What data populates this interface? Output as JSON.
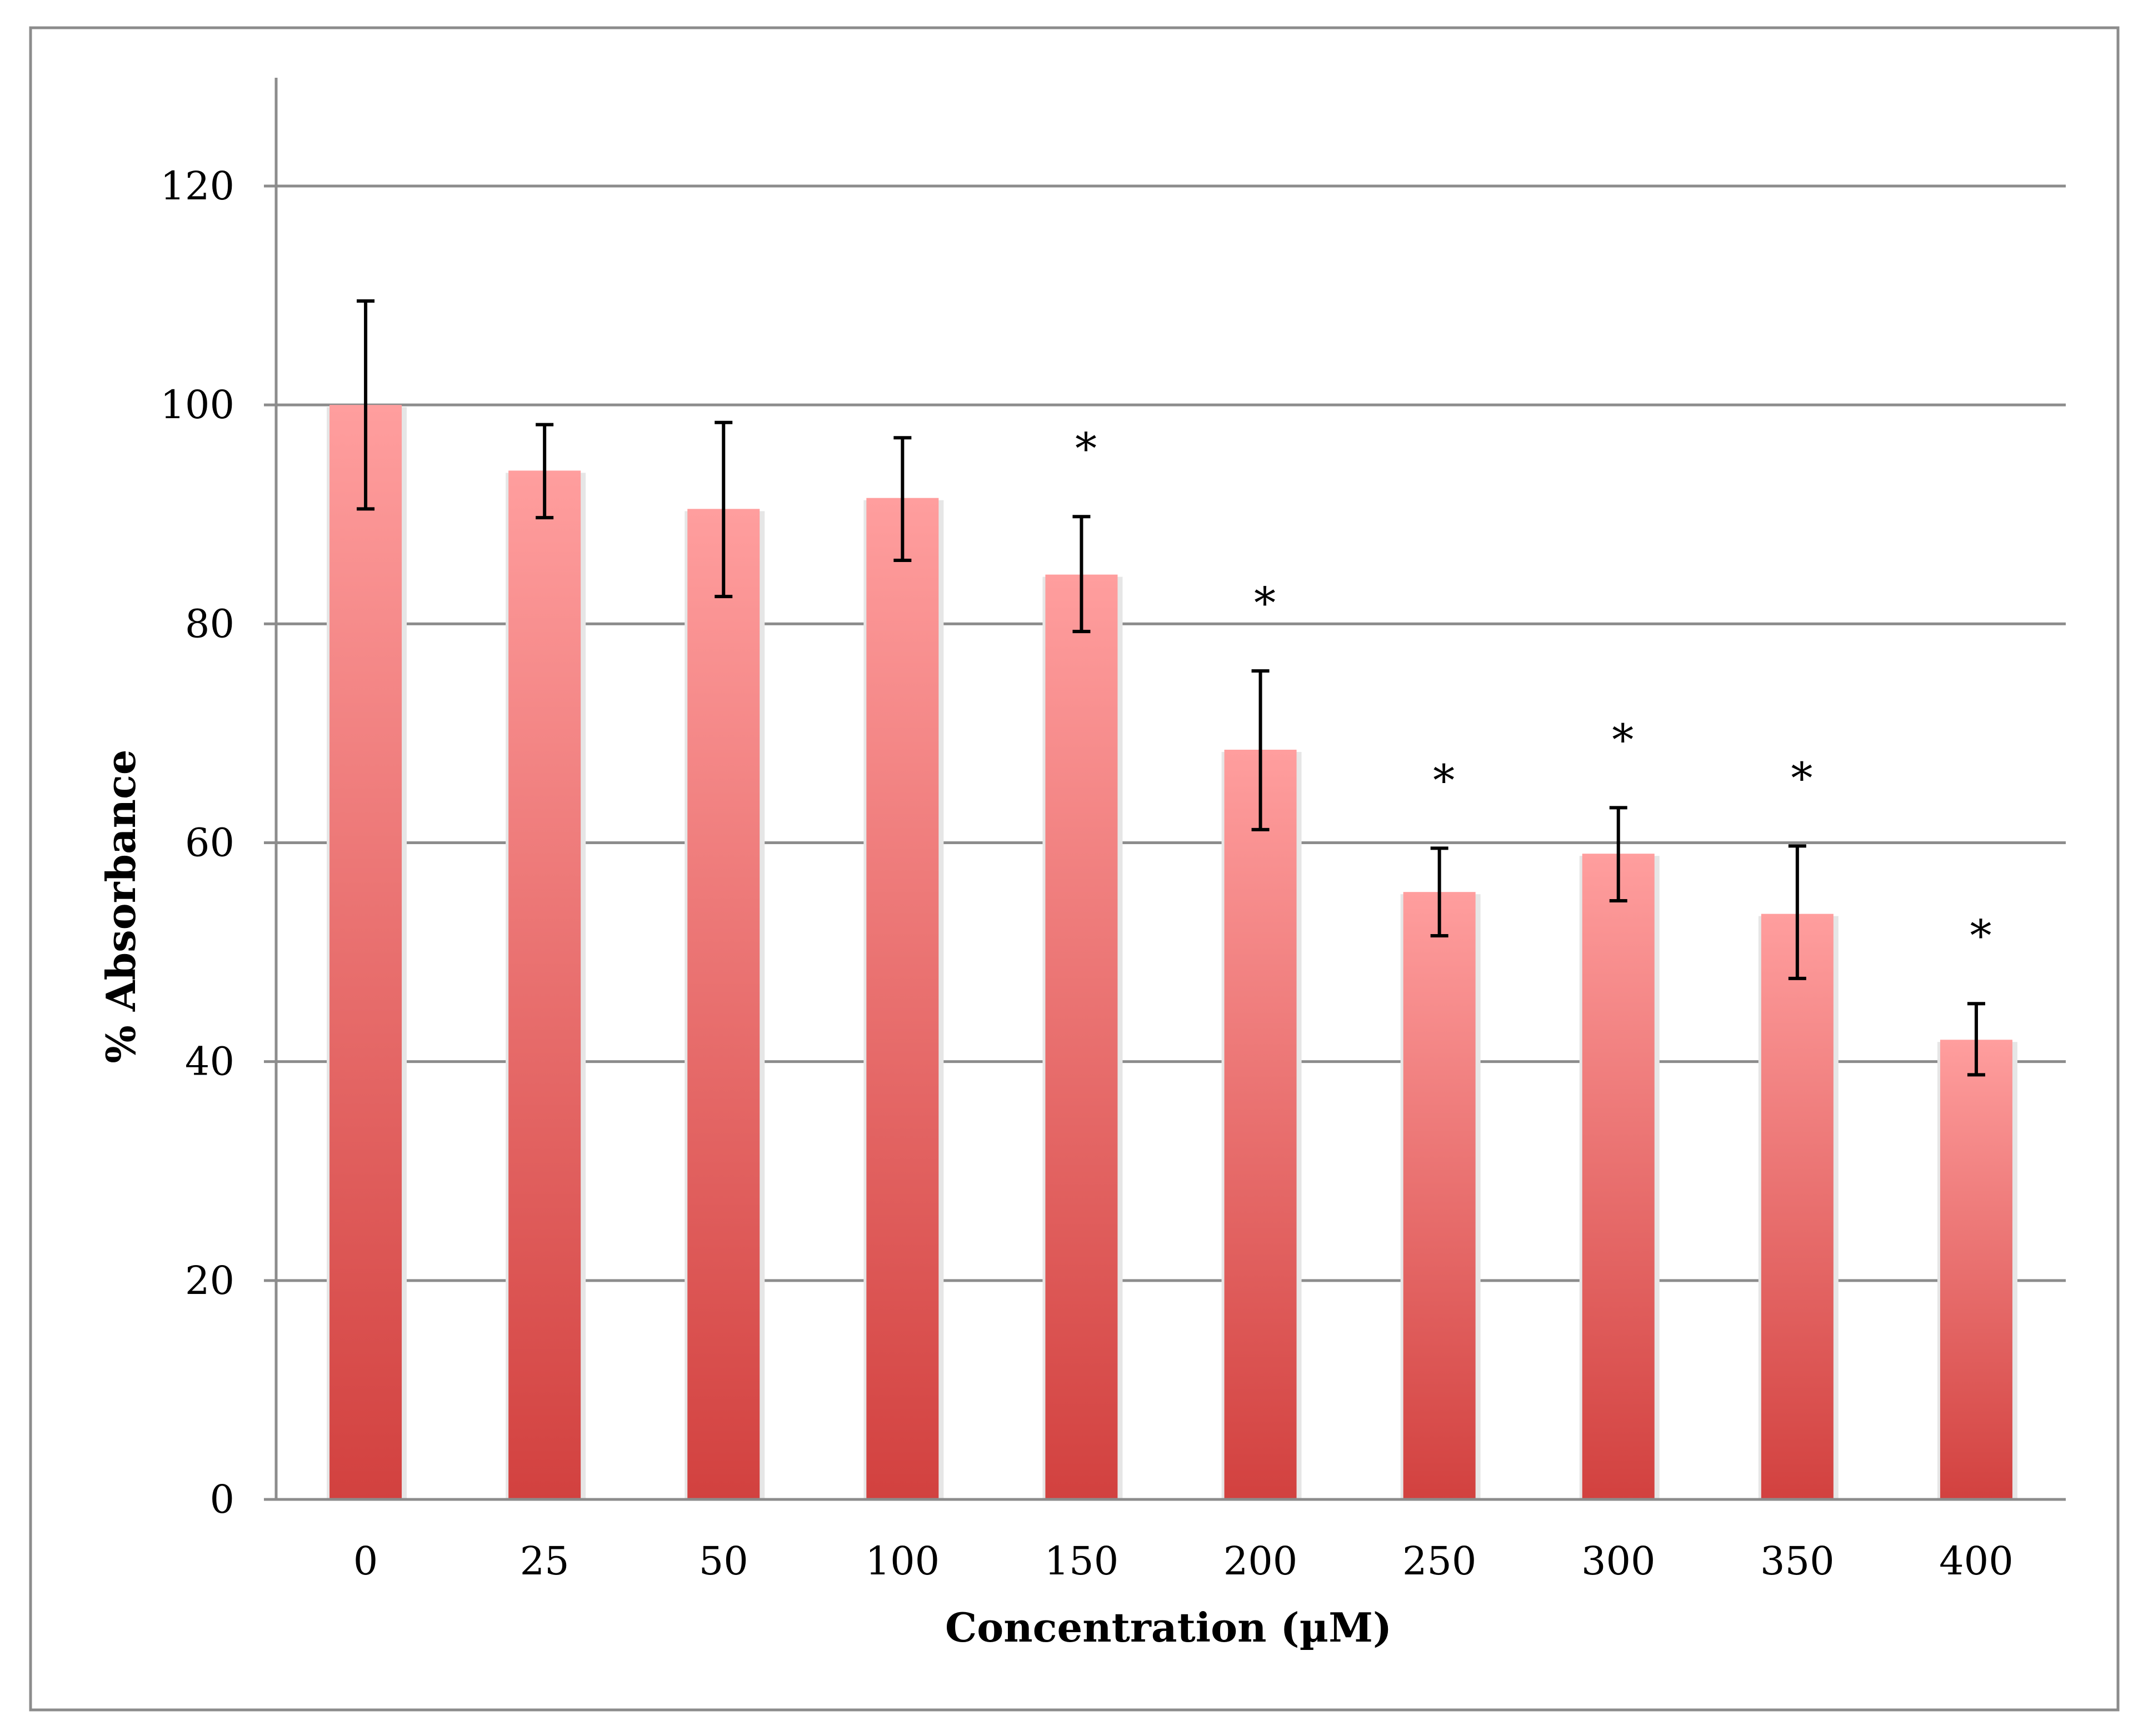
{
  "chart_data": {
    "type": "bar",
    "title": "",
    "xlabel": "Concentration (µM)",
    "ylabel": "% Absorbance",
    "categories": [
      "0",
      "25",
      "50",
      "100",
      "150",
      "200",
      "250",
      "300",
      "350",
      "400"
    ],
    "values": [
      100,
      94,
      90.5,
      91.5,
      84.5,
      68.5,
      55.5,
      59,
      53.5,
      42
    ],
    "error_low": [
      90.5,
      89.7,
      82.5,
      85.8,
      79.3,
      61.2,
      51.5,
      54.7,
      47.6,
      38.8
    ],
    "error_high": [
      109.5,
      98.2,
      98.4,
      97,
      89.8,
      75.7,
      59.5,
      63.2,
      59.7,
      45.3
    ],
    "significance": [
      "",
      "",
      "",
      "",
      "*",
      "*",
      "*",
      "*",
      "*",
      "*"
    ],
    "ylim": [
      0,
      130
    ],
    "yticks": [
      "0",
      "20",
      "40",
      "60",
      "80",
      "100",
      "120"
    ],
    "grid": true,
    "legend": "none",
    "colors": {
      "bar_top": "#ff9e9e",
      "bar_bottom": "#d2413f",
      "grid": "#8c8c8c",
      "axis": "#8c8c8c",
      "frame": "#8c8c8c",
      "error_bar": "#000000"
    }
  }
}
